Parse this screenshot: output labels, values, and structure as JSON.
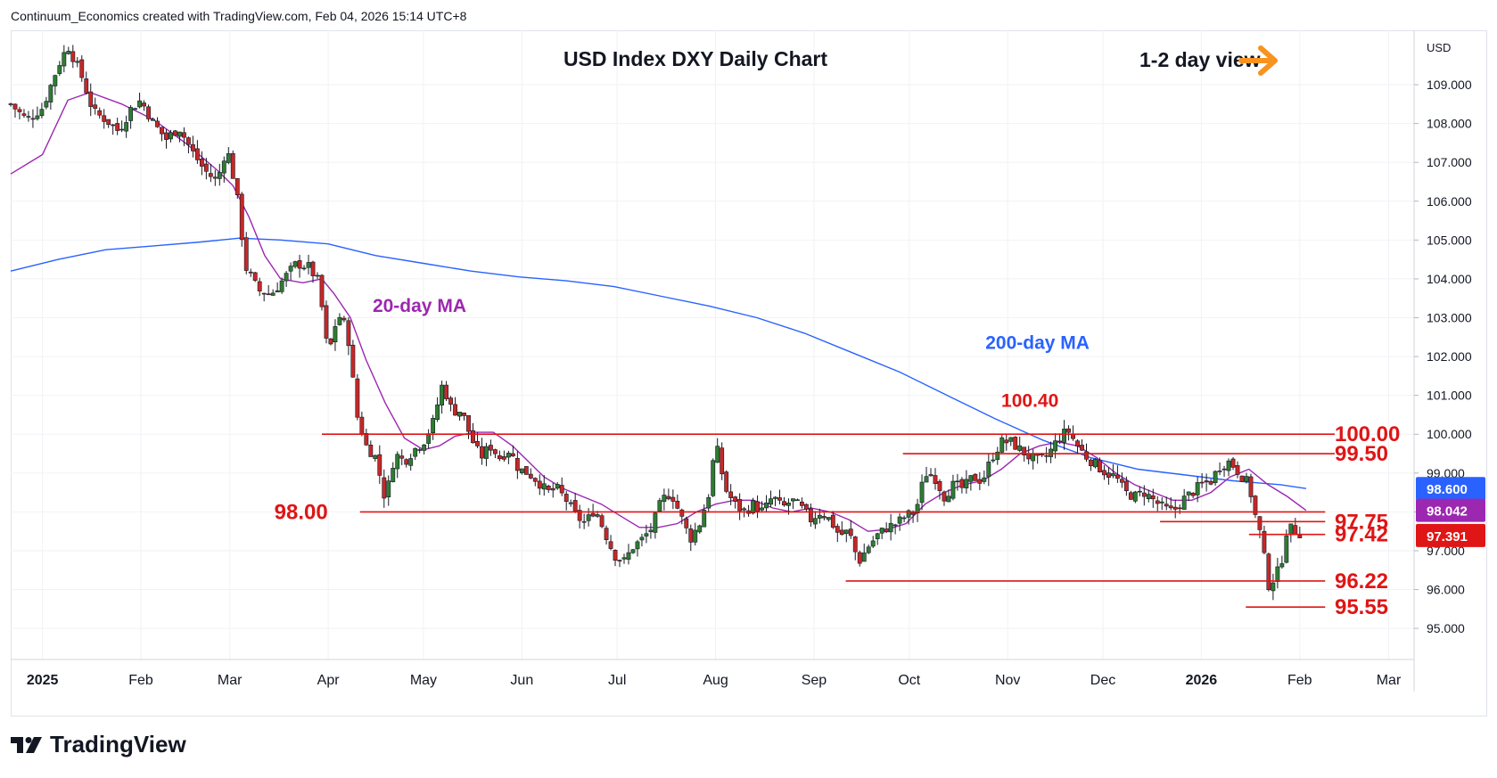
{
  "header": {
    "credit": "Continuum_Economics created with TradingView.com, Feb 04, 2026 15:14 UTC+8"
  },
  "brand": {
    "name": "TradingView",
    "icon": "tradingview-logo-icon"
  },
  "colors": {
    "up": "#2e7d32",
    "down": "#c62828",
    "ma20": "#9c27b0",
    "ma200": "#2962ff",
    "level": "#e01515",
    "arrow": "#f7931e",
    "badge_ma200": "#2962ff",
    "badge_ma20": "#9c27b0",
    "badge_price": "#e01515"
  },
  "chart_data": {
    "type": "candlestick",
    "title": "USD Index DXY Daily Chart",
    "view_label": "1-2 day view",
    "view_icon": "right-arrow-icon",
    "currency": "USD",
    "ylim": [
      94.2,
      110.4
    ],
    "yticks": [
      "95.000",
      "96.000",
      "97.000",
      "98.000",
      "99.000",
      "100.000",
      "101.000",
      "102.000",
      "103.000",
      "104.000",
      "105.000",
      "106.000",
      "107.000",
      "108.000",
      "109.000"
    ],
    "xticks": [
      {
        "label": "2025",
        "day": 0,
        "bold": true
      },
      {
        "label": "Feb",
        "day": 31
      },
      {
        "label": "Mar",
        "day": 59
      },
      {
        "label": "Apr",
        "day": 90
      },
      {
        "label": "May",
        "day": 120
      },
      {
        "label": "Jun",
        "day": 151
      },
      {
        "label": "Jul",
        "day": 181
      },
      {
        "label": "Aug",
        "day": 212
      },
      {
        "label": "Sep",
        "day": 243
      },
      {
        "label": "Oct",
        "day": 273
      },
      {
        "label": "Nov",
        "day": 304
      },
      {
        "label": "Dec",
        "day": 334
      },
      {
        "label": "2026",
        "day": 365,
        "bold": true
      },
      {
        "label": "Feb",
        "day": 396
      },
      {
        "label": "Mar",
        "day": 424
      }
    ],
    "xlim_days": [
      -10,
      432
    ],
    "price_path": [
      [
        -10,
        108.5
      ],
      [
        -5,
        108.1
      ],
      [
        0,
        108.4
      ],
      [
        5,
        109.5
      ],
      [
        8,
        110.0
      ],
      [
        12,
        109.3
      ],
      [
        16,
        108.3
      ],
      [
        20,
        108.1
      ],
      [
        24,
        107.8
      ],
      [
        28,
        108.4
      ],
      [
        31,
        108.6
      ],
      [
        35,
        108.0
      ],
      [
        39,
        107.6
      ],
      [
        43,
        107.9
      ],
      [
        47,
        107.3
      ],
      [
        51,
        106.8
      ],
      [
        55,
        106.5
      ],
      [
        58,
        107.4
      ],
      [
        61,
        106.3
      ],
      [
        64,
        104.3
      ],
      [
        68,
        103.7
      ],
      [
        72,
        103.6
      ],
      [
        76,
        104.0
      ],
      [
        80,
        104.4
      ],
      [
        84,
        104.3
      ],
      [
        87,
        103.9
      ],
      [
        90,
        102.0
      ],
      [
        93,
        103.1
      ],
      [
        96,
        102.7
      ],
      [
        99,
        100.5
      ],
      [
        102,
        99.7
      ],
      [
        105,
        99.4
      ],
      [
        108,
        98.3
      ],
      [
        111,
        99.5
      ],
      [
        114,
        99.3
      ],
      [
        117,
        99.6
      ],
      [
        120,
        99.8
      ],
      [
        123,
        100.3
      ],
      [
        126,
        101.3
      ],
      [
        129,
        100.6
      ],
      [
        132,
        100.6
      ],
      [
        135,
        99.9
      ],
      [
        138,
        99.4
      ],
      [
        141,
        99.7
      ],
      [
        144,
        99.4
      ],
      [
        147,
        99.6
      ],
      [
        150,
        99.1
      ],
      [
        153,
        99.0
      ],
      [
        156,
        98.8
      ],
      [
        159,
        98.5
      ],
      [
        162,
        98.6
      ],
      [
        165,
        98.3
      ],
      [
        168,
        97.9
      ],
      [
        171,
        97.7
      ],
      [
        174,
        98.1
      ],
      [
        177,
        97.5
      ],
      [
        180,
        96.9
      ],
      [
        183,
        96.7
      ],
      [
        186,
        97.1
      ],
      [
        189,
        97.3
      ],
      [
        192,
        97.6
      ],
      [
        195,
        98.3
      ],
      [
        198,
        98.5
      ],
      [
        201,
        97.9
      ],
      [
        204,
        97.3
      ],
      [
        207,
        97.7
      ],
      [
        210,
        98.5
      ],
      [
        212,
        99.8
      ],
      [
        215,
        98.6
      ],
      [
        218,
        98.2
      ],
      [
        221,
        98.0
      ],
      [
        224,
        98.2
      ],
      [
        227,
        98.0
      ],
      [
        230,
        98.4
      ],
      [
        233,
        98.1
      ],
      [
        236,
        98.3
      ],
      [
        239,
        98.1
      ],
      [
        242,
        97.8
      ],
      [
        245,
        98.0
      ],
      [
        248,
        97.8
      ],
      [
        251,
        97.4
      ],
      [
        254,
        97.5
      ],
      [
        257,
        96.7
      ],
      [
        260,
        97.1
      ],
      [
        263,
        97.4
      ],
      [
        266,
        97.6
      ],
      [
        269,
        97.7
      ],
      [
        272,
        97.9
      ],
      [
        275,
        98.0
      ],
      [
        278,
        99.0
      ],
      [
        281,
        98.9
      ],
      [
        284,
        98.4
      ],
      [
        287,
        98.7
      ],
      [
        290,
        98.6
      ],
      [
        293,
        98.9
      ],
      [
        296,
        98.8
      ],
      [
        299,
        99.4
      ],
      [
        302,
        99.8
      ],
      [
        305,
        99.8
      ],
      [
        308,
        99.6
      ],
      [
        311,
        99.4
      ],
      [
        314,
        99.3
      ],
      [
        317,
        99.5
      ],
      [
        320,
        99.9
      ],
      [
        323,
        100.1
      ],
      [
        326,
        99.7
      ],
      [
        329,
        99.4
      ],
      [
        332,
        99.2
      ],
      [
        335,
        99.0
      ],
      [
        338,
        98.9
      ],
      [
        341,
        98.5
      ],
      [
        344,
        98.4
      ],
      [
        347,
        98.5
      ],
      [
        350,
        98.3
      ],
      [
        353,
        98.1
      ],
      [
        356,
        98.0
      ],
      [
        359,
        98.3
      ],
      [
        362,
        98.5
      ],
      [
        365,
        98.7
      ],
      [
        368,
        98.8
      ],
      [
        371,
        99.2
      ],
      [
        374,
        99.3
      ],
      [
        377,
        99.0
      ],
      [
        380,
        98.7
      ],
      [
        382,
        97.9
      ],
      [
        384,
        97.3
      ],
      [
        386,
        96.1
      ],
      [
        388,
        96.3
      ],
      [
        390,
        96.6
      ],
      [
        392,
        97.6
      ],
      [
        395,
        97.5
      ],
      [
        397,
        97.42
      ]
    ],
    "ma20_path": [
      [
        -10,
        106.7
      ],
      [
        0,
        107.2
      ],
      [
        8,
        108.6
      ],
      [
        15,
        108.8
      ],
      [
        25,
        108.5
      ],
      [
        35,
        108.1
      ],
      [
        45,
        107.5
      ],
      [
        55,
        106.8
      ],
      [
        60,
        106.4
      ],
      [
        65,
        105.6
      ],
      [
        70,
        104.6
      ],
      [
        75,
        104.0
      ],
      [
        82,
        103.9
      ],
      [
        88,
        104.0
      ],
      [
        92,
        103.6
      ],
      [
        97,
        103.0
      ],
      [
        102,
        101.9
      ],
      [
        108,
        100.8
      ],
      [
        114,
        99.9
      ],
      [
        120,
        99.6
      ],
      [
        125,
        99.7
      ],
      [
        130,
        99.95
      ],
      [
        136,
        100.05
      ],
      [
        142,
        100.05
      ],
      [
        148,
        99.7
      ],
      [
        153,
        99.3
      ],
      [
        158,
        98.9
      ],
      [
        164,
        98.6
      ],
      [
        170,
        98.4
      ],
      [
        176,
        98.2
      ],
      [
        182,
        97.9
      ],
      [
        188,
        97.6
      ],
      [
        194,
        97.6
      ],
      [
        200,
        97.7
      ],
      [
        206,
        98.0
      ],
      [
        212,
        98.2
      ],
      [
        218,
        98.3
      ],
      [
        224,
        98.3
      ],
      [
        230,
        98.1
      ],
      [
        236,
        98.0
      ],
      [
        242,
        98.1
      ],
      [
        248,
        98.0
      ],
      [
        254,
        97.8
      ],
      [
        260,
        97.5
      ],
      [
        266,
        97.55
      ],
      [
        272,
        97.7
      ],
      [
        278,
        98.2
      ],
      [
        284,
        98.5
      ],
      [
        290,
        98.7
      ],
      [
        296,
        98.8
      ],
      [
        302,
        99.1
      ],
      [
        308,
        99.5
      ],
      [
        314,
        99.7
      ],
      [
        320,
        99.8
      ],
      [
        326,
        99.7
      ],
      [
        332,
        99.4
      ],
      [
        338,
        99.0
      ],
      [
        344,
        98.7
      ],
      [
        350,
        98.5
      ],
      [
        356,
        98.3
      ],
      [
        362,
        98.3
      ],
      [
        368,
        98.5
      ],
      [
        374,
        98.9
      ],
      [
        380,
        99.1
      ],
      [
        386,
        98.7
      ],
      [
        392,
        98.4
      ],
      [
        398,
        98.04
      ]
    ],
    "ma200_path": [
      [
        -10,
        104.2
      ],
      [
        5,
        104.5
      ],
      [
        20,
        104.75
      ],
      [
        35,
        104.85
      ],
      [
        50,
        104.95
      ],
      [
        62,
        105.05
      ],
      [
        75,
        105.0
      ],
      [
        90,
        104.9
      ],
      [
        105,
        104.6
      ],
      [
        120,
        104.4
      ],
      [
        135,
        104.2
      ],
      [
        150,
        104.05
      ],
      [
        165,
        103.95
      ],
      [
        180,
        103.8
      ],
      [
        195,
        103.55
      ],
      [
        210,
        103.3
      ],
      [
        225,
        103.0
      ],
      [
        240,
        102.6
      ],
      [
        255,
        102.1
      ],
      [
        270,
        101.6
      ],
      [
        285,
        101.0
      ],
      [
        300,
        100.4
      ],
      [
        315,
        99.85
      ],
      [
        330,
        99.4
      ],
      [
        345,
        99.1
      ],
      [
        360,
        98.95
      ],
      [
        375,
        98.8
      ],
      [
        390,
        98.7
      ],
      [
        398,
        98.6
      ]
    ],
    "levels": [
      {
        "price": 100.0,
        "label": "100.00",
        "from": 88,
        "to": 407,
        "label_day": 407
      },
      {
        "price": 99.5,
        "label": "99.50",
        "from": 271,
        "to": 407,
        "label_day": 407
      },
      {
        "price": 98.0,
        "label": "98.00",
        "from": 100,
        "to": 404,
        "left_label": "98.00",
        "label_day": null
      },
      {
        "price": 97.75,
        "label": "97.75",
        "from": 352,
        "to": 404,
        "label_day": 407
      },
      {
        "price": 97.42,
        "label": "97.42",
        "from": 380,
        "to": 404,
        "label_day": 407
      },
      {
        "price": 96.22,
        "label": "96.22",
        "from": 253,
        "to": 404,
        "label_day": 407
      },
      {
        "price": 95.55,
        "label": "95.55",
        "from": 379,
        "to": 404,
        "label_day": 407
      }
    ],
    "annotations": [
      {
        "text": "20-day MA",
        "day": 104,
        "price": 103.15,
        "color_key": "ma20"
      },
      {
        "text": "200-day MA",
        "day": 297,
        "price": 102.2,
        "color_key": "ma200"
      },
      {
        "text": "100.40",
        "day": 302,
        "price": 100.7,
        "color_key": "level"
      }
    ],
    "badges": [
      {
        "text": "98.600",
        "price": 98.6,
        "color_key": "badge_ma200"
      },
      {
        "text": "98.042",
        "price": 98.042,
        "color_key": "badge_ma20"
      },
      {
        "text": "97.391",
        "price": 97.391,
        "color_key": "badge_price"
      }
    ]
  }
}
